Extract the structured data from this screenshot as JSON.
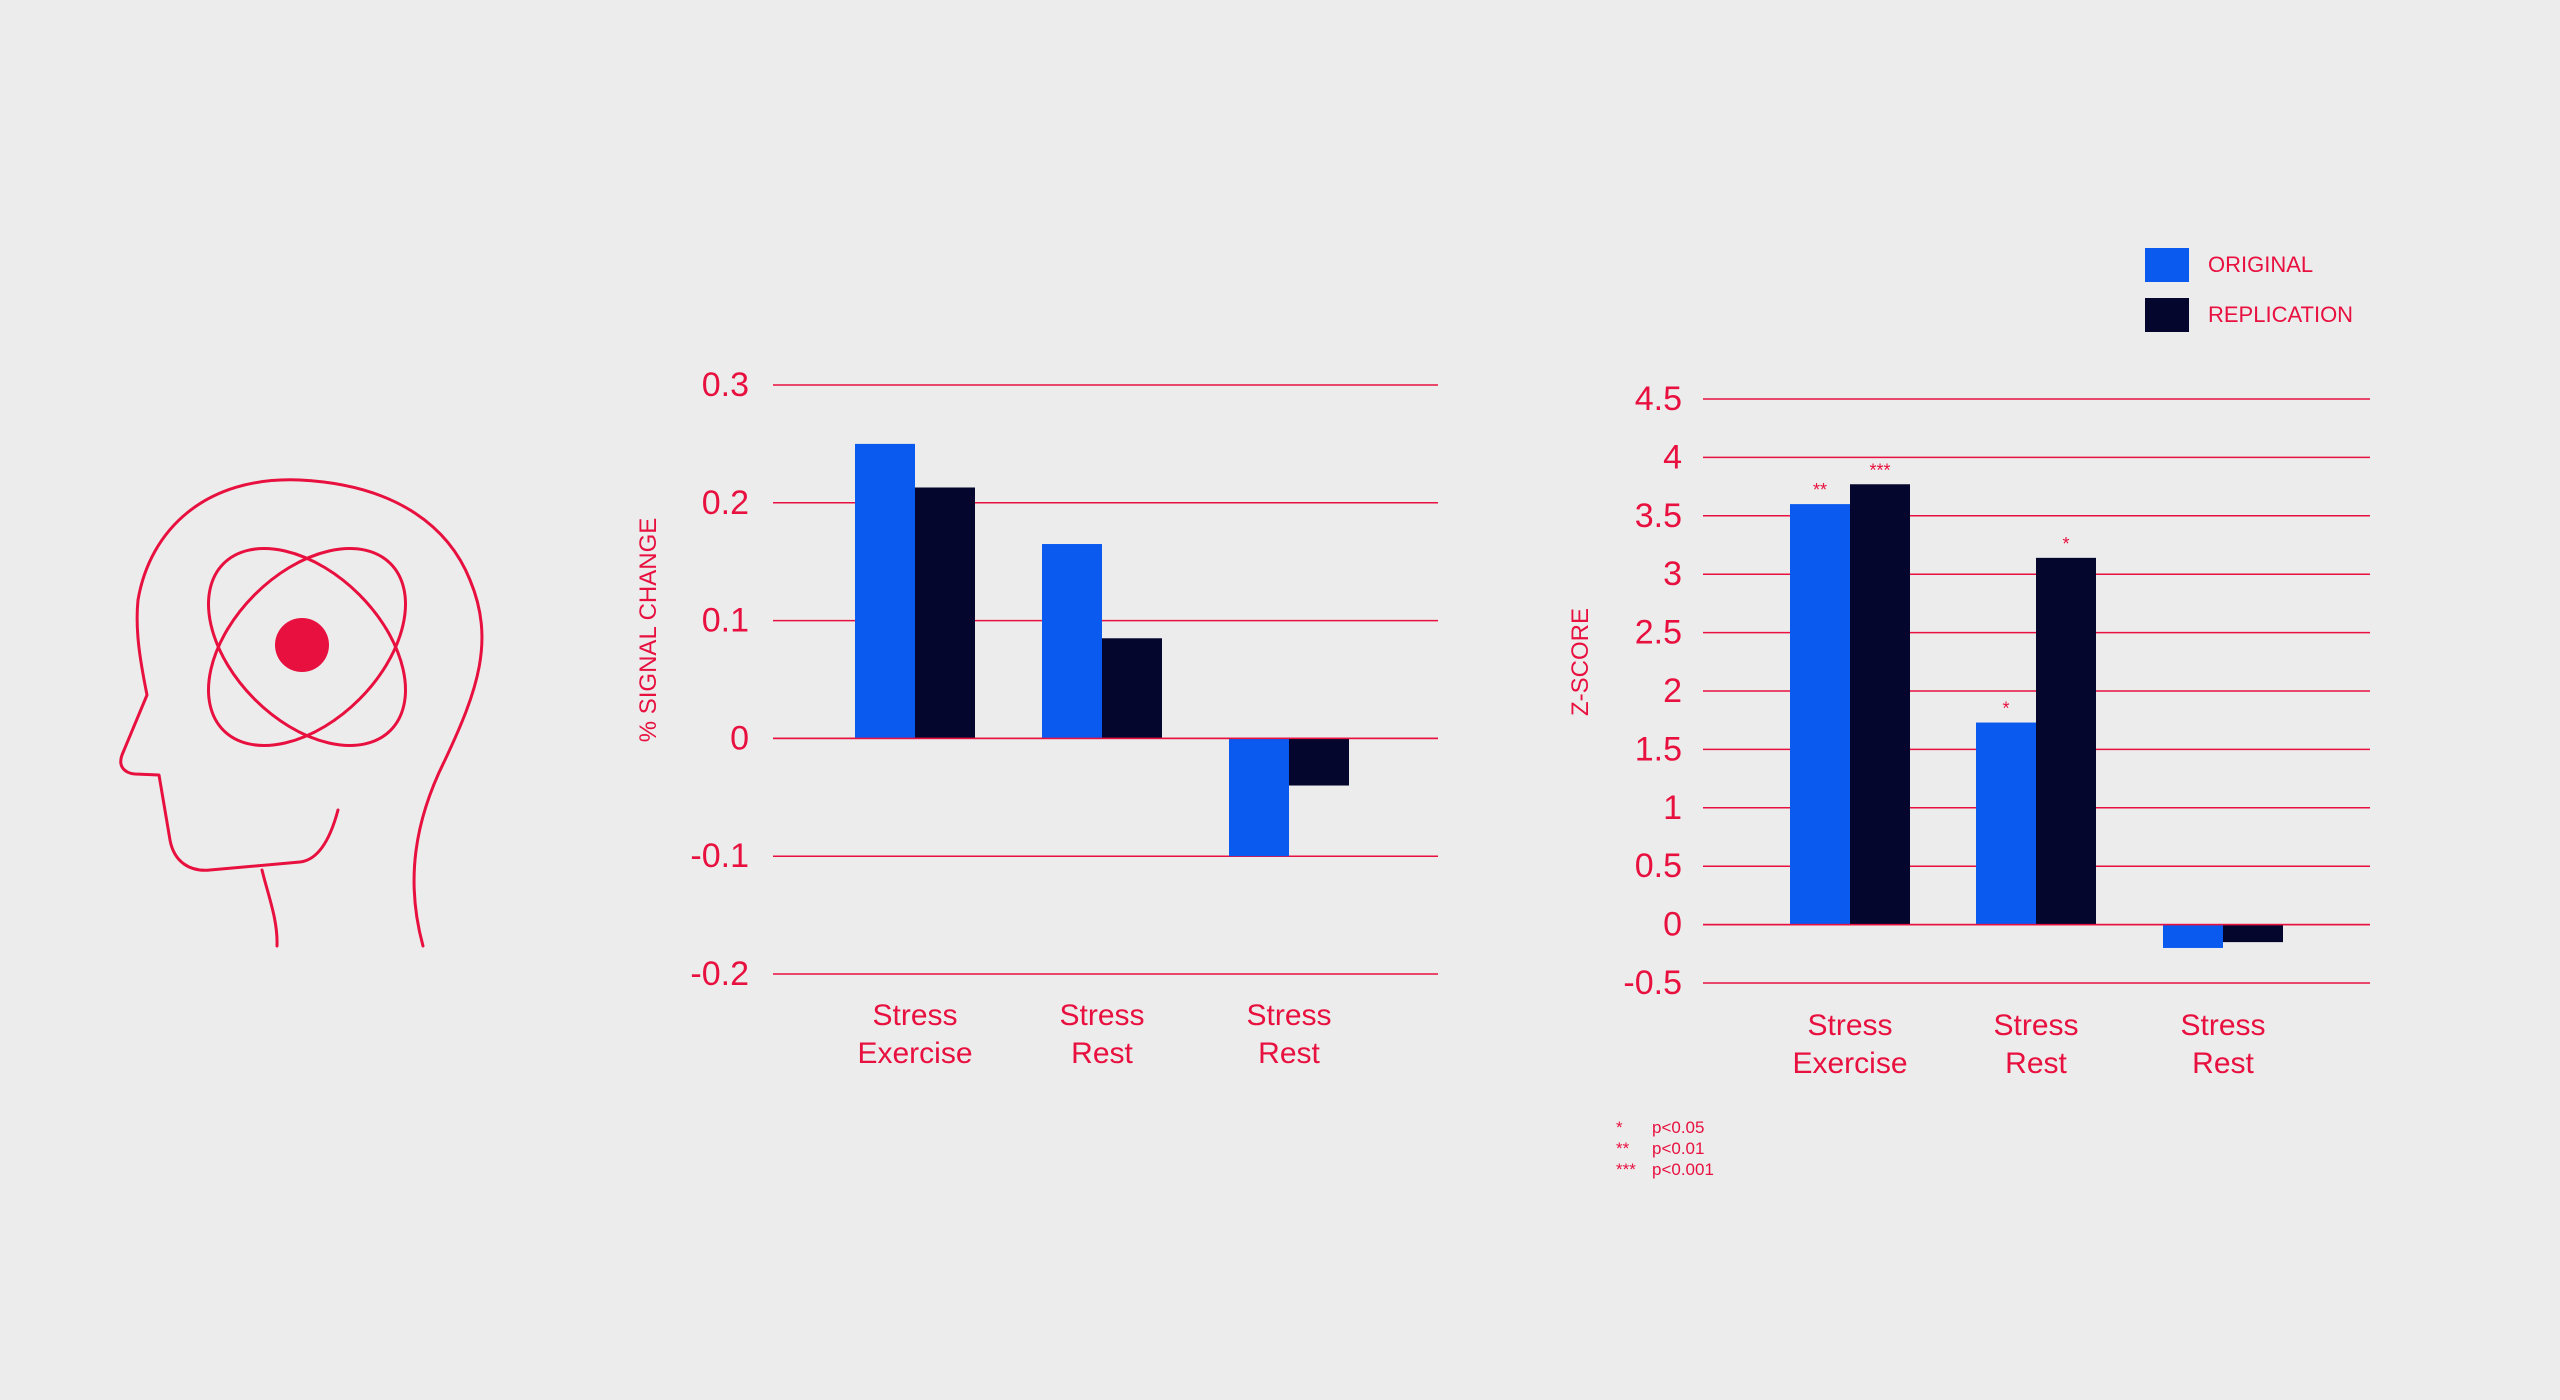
{
  "colors": {
    "background": "#ececec",
    "accent": "#e8103f",
    "original": "#0a5af0",
    "replication": "#04062e"
  },
  "icons": {
    "head": "head-with-atom-icon"
  },
  "legend": {
    "items": [
      {
        "label": "ORIGINAL",
        "color": "#0a5af0"
      },
      {
        "label": "REPLICATION",
        "color": "#04062e"
      }
    ]
  },
  "footnote": {
    "items": [
      {
        "marker": "*",
        "text": "p<0.05"
      },
      {
        "marker": "**",
        "text": "p<0.01"
      },
      {
        "marker": "***",
        "text": "p<0.001"
      }
    ]
  },
  "chart_data": [
    {
      "type": "bar",
      "ylabel": "% SIGNAL CHANGE",
      "xlabel": "",
      "categories": [
        [
          "Stress",
          "Exercise"
        ],
        [
          "Stress",
          "Rest"
        ],
        [
          "Stress",
          "Rest"
        ]
      ],
      "series": [
        {
          "name": "ORIGINAL",
          "values": [
            0.25,
            0.165,
            -0.1
          ]
        },
        {
          "name": "REPLICATION",
          "values": [
            0.213,
            0.085,
            -0.04
          ]
        }
      ],
      "ylim": [
        -0.2,
        0.3
      ],
      "yticks": [
        0.3,
        0.2,
        0.1,
        0,
        -0.1,
        -0.2
      ],
      "ytick_labels": [
        "0.3",
        "0.2",
        "0.1",
        "0",
        "-0.1",
        "-0.2"
      ],
      "grid": true,
      "annotations": []
    },
    {
      "type": "bar",
      "ylabel": "Z-SCORE",
      "xlabel": "",
      "categories": [
        [
          "Stress",
          "Exercise"
        ],
        [
          "Stress",
          "Rest"
        ],
        [
          "Stress",
          "Rest"
        ]
      ],
      "series": [
        {
          "name": "ORIGINAL",
          "values": [
            3.6,
            1.73,
            -0.2
          ]
        },
        {
          "name": "REPLICATION",
          "values": [
            3.77,
            3.14,
            -0.15
          ]
        }
      ],
      "ylim": [
        -0.5,
        4.5
      ],
      "yticks": [
        4.5,
        4,
        3.5,
        3,
        2.5,
        2,
        1.5,
        1,
        0.5,
        0,
        -0.5
      ],
      "ytick_labels": [
        "4.5",
        "4",
        "3.5",
        "3",
        "2.5",
        "2",
        "1.5",
        "1",
        "0.5",
        "0",
        "-0.5"
      ],
      "grid": true,
      "annotations": [
        [
          "**",
          "***"
        ],
        [
          "*",
          "*"
        ],
        [
          "",
          ""
        ]
      ]
    }
  ]
}
